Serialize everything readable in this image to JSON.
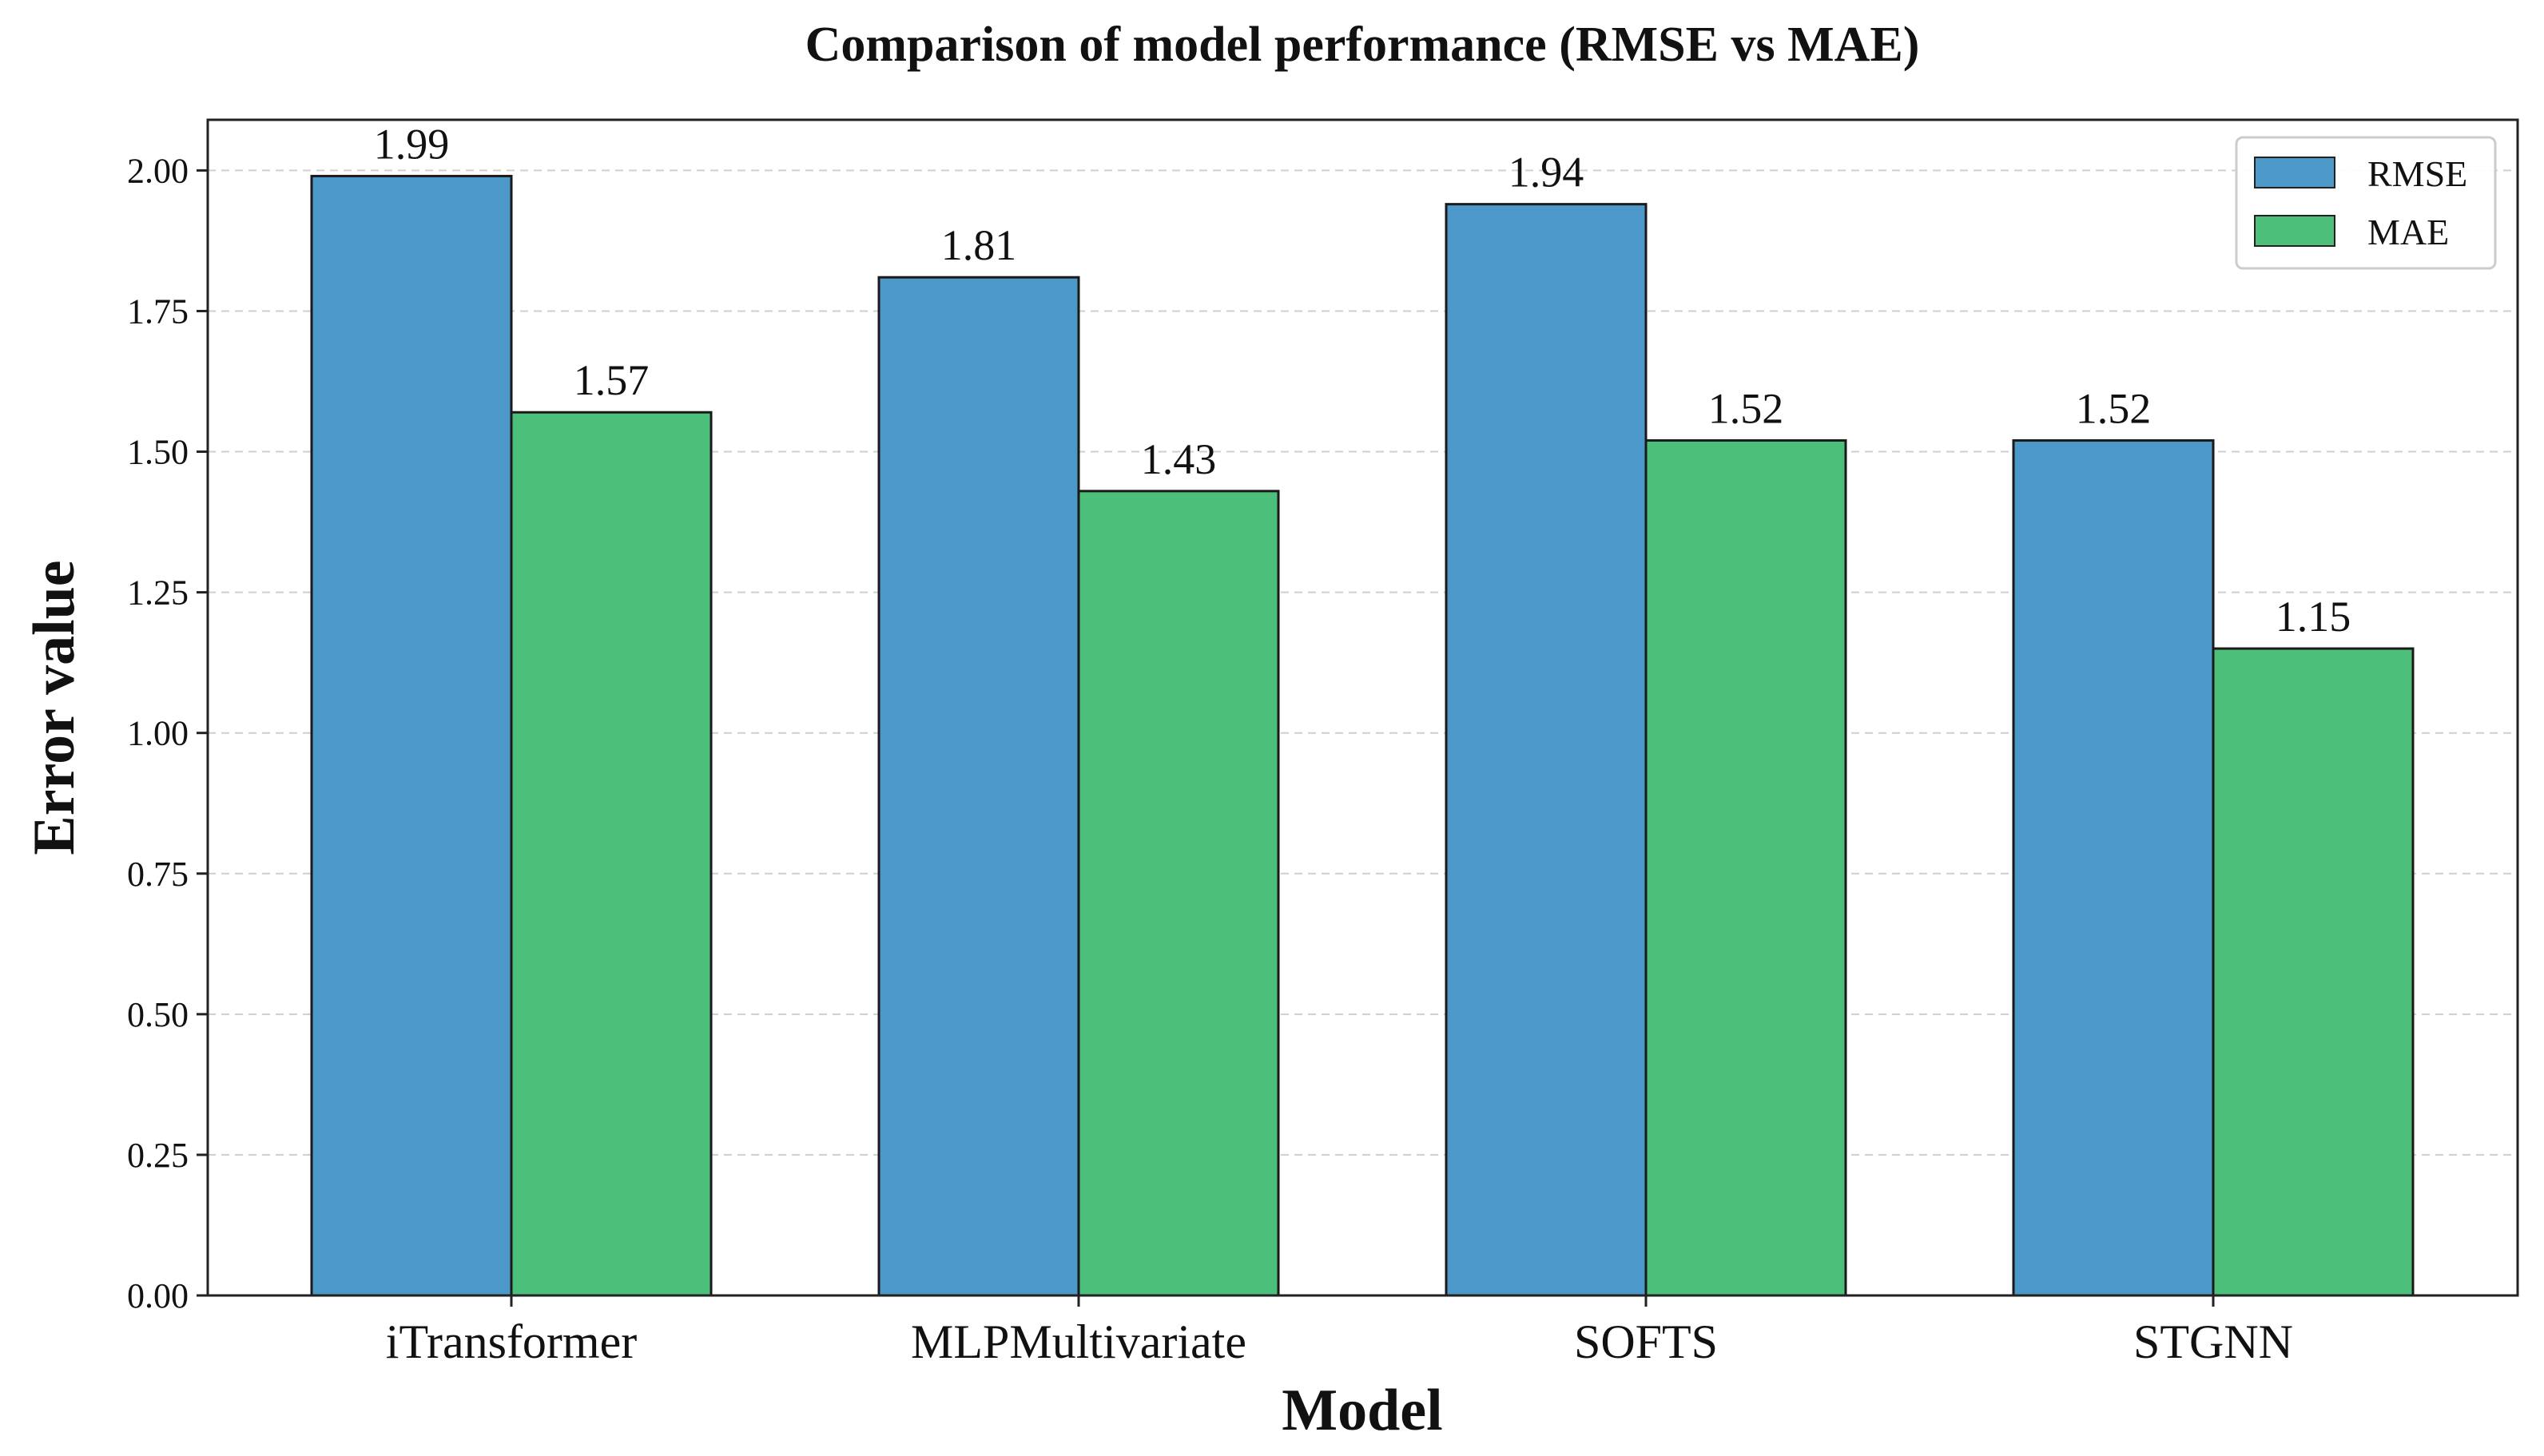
{
  "chart_data": {
    "type": "bar",
    "title": "Comparison of model performance (RMSE vs MAE)",
    "xlabel": "Model",
    "ylabel": "Error value",
    "categories": [
      "iTransformer",
      "MLPMultivariate",
      "SOFTS",
      "STGNN"
    ],
    "series": [
      {
        "name": "RMSE",
        "values": [
          1.99,
          1.81,
          1.94,
          1.52
        ],
        "color": "#4c98c9"
      },
      {
        "name": "MAE",
        "values": [
          1.57,
          1.43,
          1.52,
          1.15
        ],
        "color": "#4cc07a"
      }
    ],
    "value_labels": {
      "RMSE": [
        "1.99",
        "1.81",
        "1.94",
        "1.52"
      ],
      "MAE": [
        "1.57",
        "1.43",
        "1.52",
        "1.15"
      ]
    },
    "yticks": [
      "0.00",
      "0.25",
      "0.50",
      "0.75",
      "1.00",
      "1.25",
      "1.50",
      "1.75",
      "2.00"
    ],
    "ylim": [
      0,
      2.09
    ],
    "grid": "y-dashed",
    "legend_position": "top-right"
  }
}
